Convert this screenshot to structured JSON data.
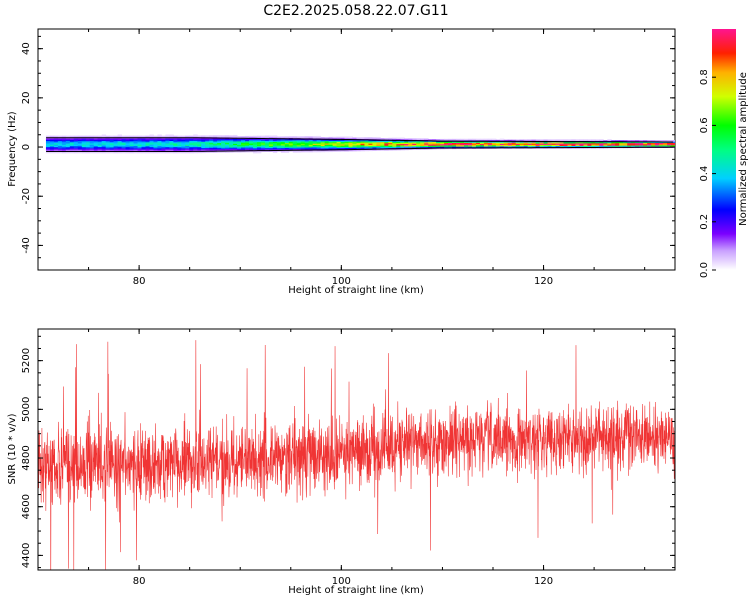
{
  "title": "C2E2.2025.058.22.07.G11",
  "chart_data": [
    {
      "type": "heatmap",
      "xlabel": "Height of straight line (km)",
      "ylabel": "Frequency (Hz)",
      "xlim": [
        70,
        133
      ],
      "ylim": [
        -50,
        48
      ],
      "x_ticks": [
        80,
        100,
        120
      ],
      "y_ticks": [
        40,
        20,
        0,
        -20,
        -40
      ],
      "description_values": {
        "center_frequency_hz": 1,
        "spectral_width_hz": [
          {
            "height_km": 71,
            "width_hz": 4
          },
          {
            "height_km": 85,
            "width_hz": 4
          },
          {
            "height_km": 100,
            "width_hz": 3
          },
          {
            "height_km": 110,
            "width_hz": 2
          },
          {
            "height_km": 133,
            "width_hz": 1.5
          }
        ],
        "peak_amplitude": [
          {
            "height_km": 71,
            "value": 0.4
          },
          {
            "height_km": 85,
            "value": 0.45
          },
          {
            "height_km": 100,
            "value": 0.75
          },
          {
            "height_km": 110,
            "value": 0.95
          },
          {
            "height_km": 133,
            "value": 1.0
          }
        ]
      },
      "colorbar": {
        "label": "Normalized spectral amplitude",
        "range": [
          0.0,
          1.0
        ],
        "ticks": [
          "0.0",
          "0.2",
          "0.4",
          "0.6",
          "0.8"
        ]
      }
    },
    {
      "type": "line",
      "color": "#f03434",
      "xlabel": "Height of straight line (km)",
      "ylabel": "SNR (10 * v/v)",
      "xlim": [
        70,
        133
      ],
      "ylim": [
        4340,
        5330
      ],
      "x_ticks": [
        80,
        100,
        120
      ],
      "y_ticks": [
        5200,
        5000,
        4800,
        4600,
        4400
      ],
      "trend": [
        {
          "height_km": 70,
          "mean": 4770,
          "spread": 150
        },
        {
          "height_km": 80,
          "mean": 4775,
          "spread": 145
        },
        {
          "height_km": 90,
          "mean": 4790,
          "spread": 140
        },
        {
          "height_km": 100,
          "mean": 4820,
          "spread": 130
        },
        {
          "height_km": 110,
          "mean": 4870,
          "spread": 125
        },
        {
          "height_km": 120,
          "mean": 4880,
          "spread": 120
        },
        {
          "height_km": 133,
          "mean": 4890,
          "spread": 115
        }
      ]
    }
  ]
}
